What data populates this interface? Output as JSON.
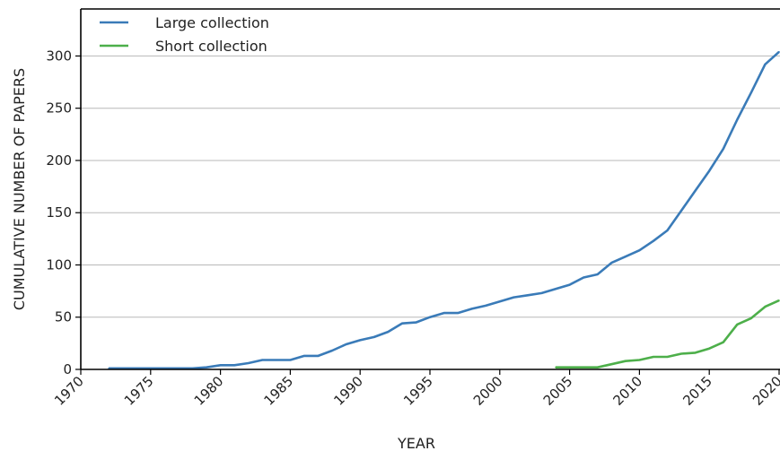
{
  "chart_data": {
    "type": "line",
    "xlabel": "YEAR",
    "ylabel": "CUMULATIVE NUMBER OF PAPERS",
    "xlim": [
      1970,
      2020
    ],
    "ylim": [
      0,
      345
    ],
    "x_ticks": [
      1970,
      1975,
      1980,
      1985,
      1990,
      1995,
      2000,
      2005,
      2010,
      2015,
      2020
    ],
    "y_ticks": [
      0,
      50,
      100,
      150,
      200,
      250,
      300
    ],
    "grid": "horizontal",
    "legend_position": "top-left",
    "series": [
      {
        "name": "Large collection",
        "color": "#3a7bb8",
        "x": [
          1972,
          1973,
          1974,
          1975,
          1976,
          1977,
          1978,
          1979,
          1980,
          1981,
          1982,
          1983,
          1984,
          1985,
          1986,
          1987,
          1988,
          1989,
          1990,
          1991,
          1992,
          1993,
          1994,
          1995,
          1996,
          1997,
          1998,
          1999,
          2000,
          2001,
          2002,
          2003,
          2004,
          2005,
          2006,
          2007,
          2008,
          2009,
          2010,
          2011,
          2012,
          2013,
          2014,
          2015,
          2016,
          2017,
          2018,
          2019,
          2020
        ],
        "y": [
          1,
          1,
          1,
          1,
          1,
          1,
          1,
          2,
          4,
          4,
          6,
          9,
          9,
          9,
          13,
          13,
          18,
          24,
          28,
          31,
          36,
          44,
          45,
          50,
          54,
          54,
          58,
          61,
          65,
          69,
          71,
          73,
          77,
          81,
          88,
          91,
          102,
          108,
          114,
          123,
          133,
          152,
          171,
          190,
          211,
          239,
          265,
          292,
          304
        ]
      },
      {
        "name": "Short collection",
        "color": "#4daf4a",
        "x": [
          2004,
          2005,
          2006,
          2007,
          2008,
          2009,
          2010,
          2011,
          2012,
          2013,
          2014,
          2015,
          2016,
          2017,
          2018,
          2019,
          2020
        ],
        "y": [
          2,
          2,
          2,
          2,
          5,
          8,
          9,
          12,
          12,
          15,
          16,
          20,
          26,
          43,
          49,
          60,
          66
        ]
      }
    ]
  }
}
